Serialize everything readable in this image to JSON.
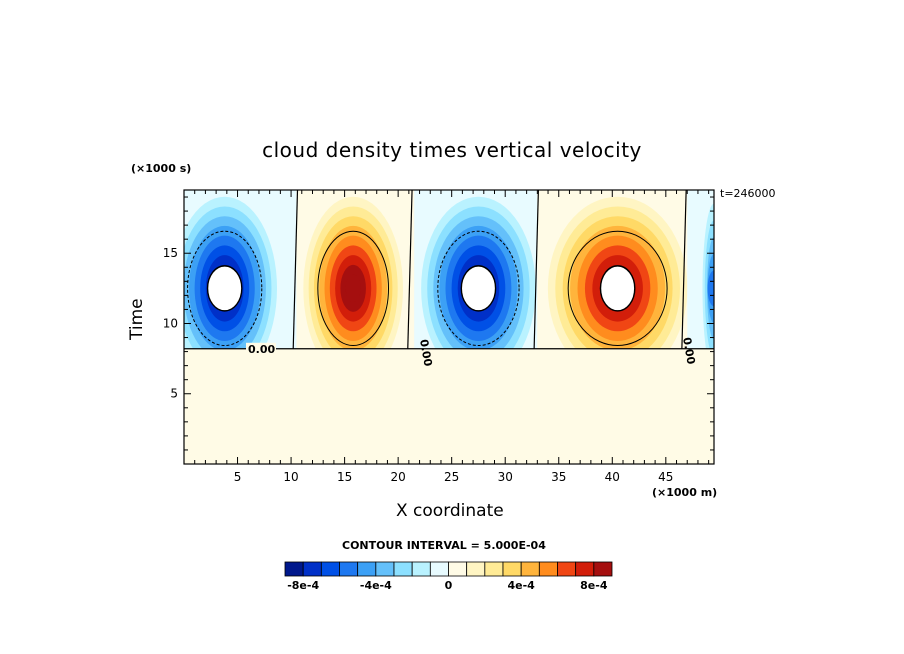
{
  "chart_data": {
    "type": "heatmap",
    "title": "cloud density times vertical velocity",
    "timestamp": "t=246000",
    "xlabel": "X coordinate",
    "xunit": "(×1000 m)",
    "ylabel": "Time",
    "yunit": "(×1000 s)",
    "xlim": [
      0,
      49.5
    ],
    "ylim": [
      0,
      19.5
    ],
    "xticks": [
      "5",
      "10",
      "15",
      "20",
      "25",
      "30",
      "35",
      "40",
      "45"
    ],
    "yticks": [
      "5",
      "10",
      "15"
    ],
    "contour_interval_text": "CONTOUR INTERVAL = 5.000E-04",
    "zero_contour_labels": [
      "0.00",
      "0.00",
      "0.00"
    ],
    "colorbar": {
      "colors": [
        "#00188c",
        "#0030c8",
        "#0050e6",
        "#1e78f0",
        "#3ca0f5",
        "#64c0fa",
        "#8ce0ff",
        "#b9f2ff",
        "#e8fbff",
        "#fffbe6",
        "#fff5c3",
        "#ffeb96",
        "#ffd966",
        "#ffb43c",
        "#ff8c1e",
        "#f04614",
        "#d21e0a",
        "#a50f0f"
      ],
      "tick_labels": [
        "-8e-4",
        "-4e-4",
        "0",
        "4e-4",
        "8e-4"
      ],
      "tick_values": [
        -0.0008,
        -0.0004,
        0,
        0.0004,
        0.0008
      ],
      "levels_min": -0.0009,
      "levels_max": 0.0009
    },
    "cells": [
      {
        "sign": "negative",
        "x_range": [
          0,
          10.5
        ],
        "t_range": [
          8.2,
          19.5
        ],
        "center": [
          3.8,
          12.5
        ],
        "peak": -0.00095
      },
      {
        "sign": "positive",
        "x_range": [
          11,
          21
        ],
        "t_range": [
          8.2,
          19.5
        ],
        "center": [
          15.8,
          12.5
        ],
        "peak": 0.0008
      },
      {
        "sign": "negative",
        "x_range": [
          21.5,
          33
        ],
        "t_range": [
          8.2,
          19.5
        ],
        "center": [
          27.5,
          12.5
        ],
        "peak": -0.001
      },
      {
        "sign": "positive",
        "x_range": [
          33,
          47
        ],
        "t_range": [
          8.2,
          19.5
        ],
        "center": [
          40.5,
          12.5
        ],
        "peak": 0.001
      },
      {
        "sign": "negative",
        "x_range": [
          47,
          49.5
        ],
        "t_range": [
          8.2,
          19.5
        ],
        "center": [
          49.5,
          12.5
        ],
        "peak": -0.0004
      }
    ]
  }
}
